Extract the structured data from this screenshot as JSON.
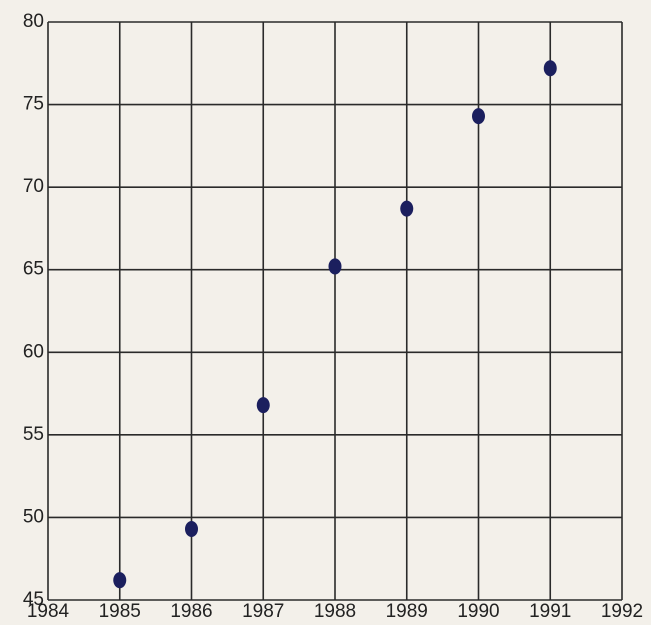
{
  "chart_data": {
    "type": "scatter",
    "x": [
      1985,
      1986,
      1987,
      1988,
      1989,
      1990,
      1991
    ],
    "values": [
      46.2,
      49.3,
      56.8,
      65.2,
      68.7,
      74.3,
      77.2
    ],
    "color": "#1b1f5e",
    "xlim": [
      1984,
      1992
    ],
    "xticks": [
      1984,
      1985,
      1986,
      1987,
      1988,
      1989,
      1990,
      1991,
      1992
    ],
    "ylim": [
      45,
      80
    ],
    "yticks": [
      45,
      50,
      55,
      60,
      65,
      70,
      75,
      80
    ],
    "grid": true
  }
}
